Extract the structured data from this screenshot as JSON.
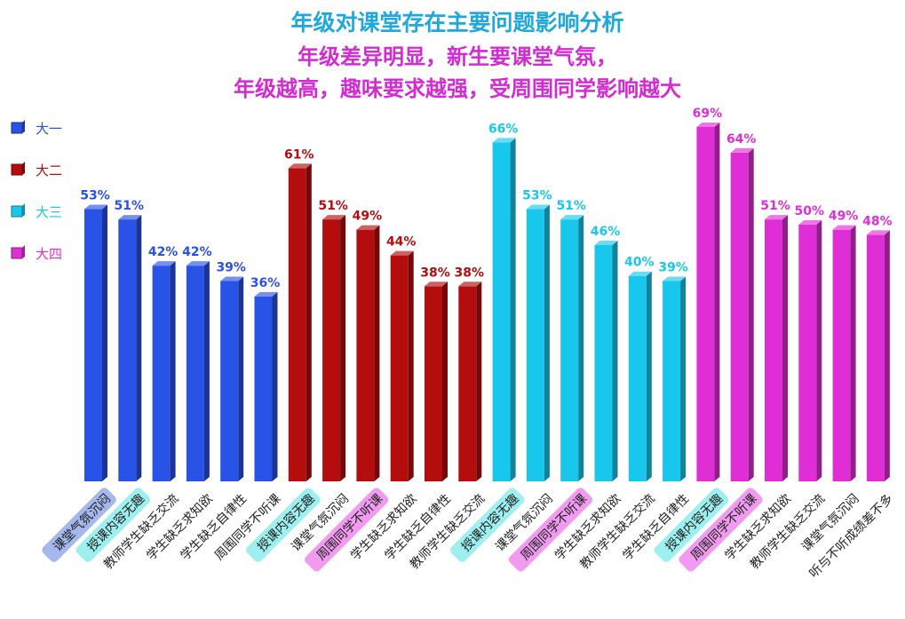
{
  "chart_data": {
    "type": "bar",
    "title": "年级对课堂存在主要问题影响分析",
    "subtitle_lines": [
      "年级差异明显，新生要课堂气氛，",
      "年级越高，趣味要求越强，受周围同学影响越大"
    ],
    "xlabel": "",
    "ylabel": "",
    "ylim": [
      0,
      75
    ],
    "grid": false,
    "legend_position": "left",
    "value_suffix": "%",
    "groups": [
      {
        "name": "大一",
        "color": "#2952e6",
        "categories": [
          "课堂气氛沉闷",
          "授课内容无趣",
          "教师学生缺乏交流",
          "学生缺乏求知欲",
          "学生缺乏自律性",
          "周围同学不听课"
        ],
        "values": [
          53,
          51,
          42,
          42,
          39,
          36
        ],
        "highlights": [
          {
            "index": 0,
            "color": "#a4b8ee"
          },
          {
            "index": 1,
            "color": "#9ef0f0"
          }
        ]
      },
      {
        "name": "大二",
        "color": "#b40d0d",
        "categories": [
          "授课内容无趣",
          "课堂气氛沉闷",
          "周围同学不听课",
          "学生缺乏求知欲",
          "学生缺乏自律性",
          "教师学生缺乏交流"
        ],
        "values": [
          61,
          51,
          49,
          44,
          38,
          38
        ],
        "highlights": [
          {
            "index": 0,
            "color": "#9ef0f0"
          },
          {
            "index": 2,
            "color": "#f09af0"
          }
        ]
      },
      {
        "name": "大三",
        "color": "#18c8ec",
        "categories": [
          "授课内容无趣",
          "课堂气氛沉闷",
          "周围同学不听课",
          "学生缺乏求知欲",
          "教师学生缺乏交流",
          "学生缺乏自律性"
        ],
        "values": [
          66,
          53,
          51,
          46,
          40,
          39
        ],
        "highlights": [
          {
            "index": 0,
            "color": "#9ef0f0"
          },
          {
            "index": 2,
            "color": "#f09af0"
          }
        ]
      },
      {
        "name": "大四",
        "color": "#e02ed6",
        "categories": [
          "授课内容无趣",
          "周围同学不听课",
          "学生缺乏求知欲",
          "教师学生缺乏交流",
          "课堂气氛沉闷",
          "听与不听成绩差不多"
        ],
        "values": [
          69,
          64,
          51,
          50,
          49,
          48
        ],
        "highlights": [
          {
            "index": 0,
            "color": "#9ef0f0"
          },
          {
            "index": 1,
            "color": "#f09af0"
          }
        ]
      }
    ]
  },
  "colors": {
    "title": "#1fa8dc",
    "subtitle": "#d42ad4",
    "tick_label": "#222222"
  }
}
